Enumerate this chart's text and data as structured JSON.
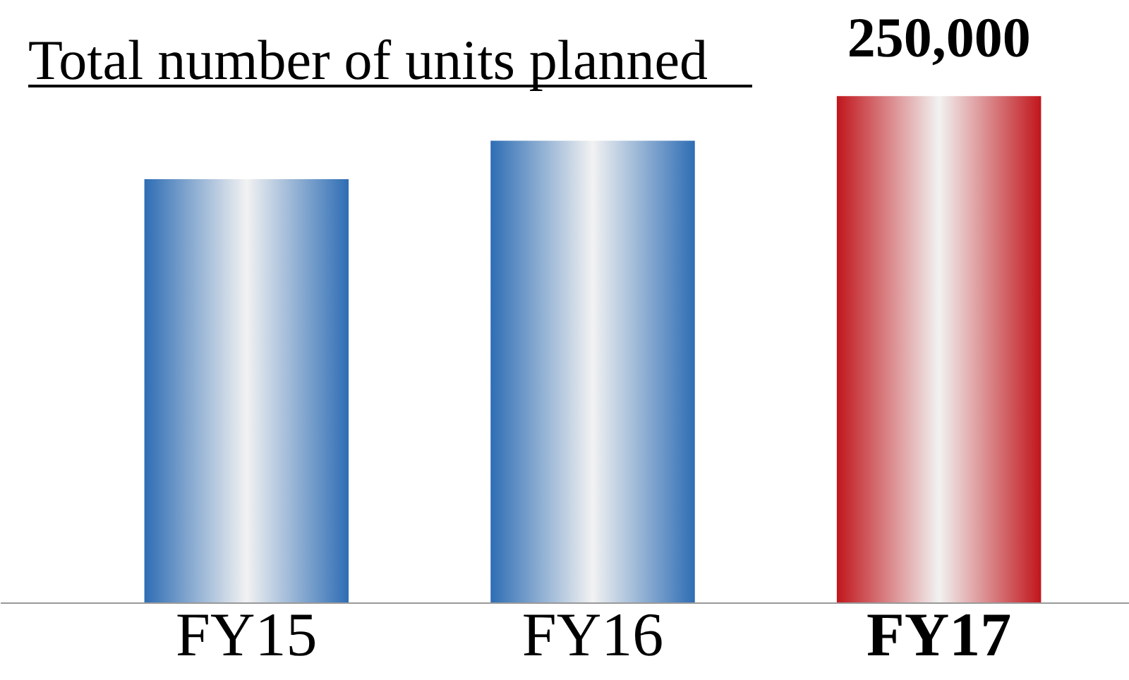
{
  "chart_data": {
    "type": "bar",
    "title": "Total number of units planned",
    "categories": [
      "FY15",
      "FY16",
      "FY17"
    ],
    "values": [
      209000,
      228000,
      250000
    ],
    "colors": [
      "#2e6db4",
      "#2e6db4",
      "#c0161c"
    ],
    "value_labels": [
      null,
      null,
      "250,000"
    ]
  }
}
